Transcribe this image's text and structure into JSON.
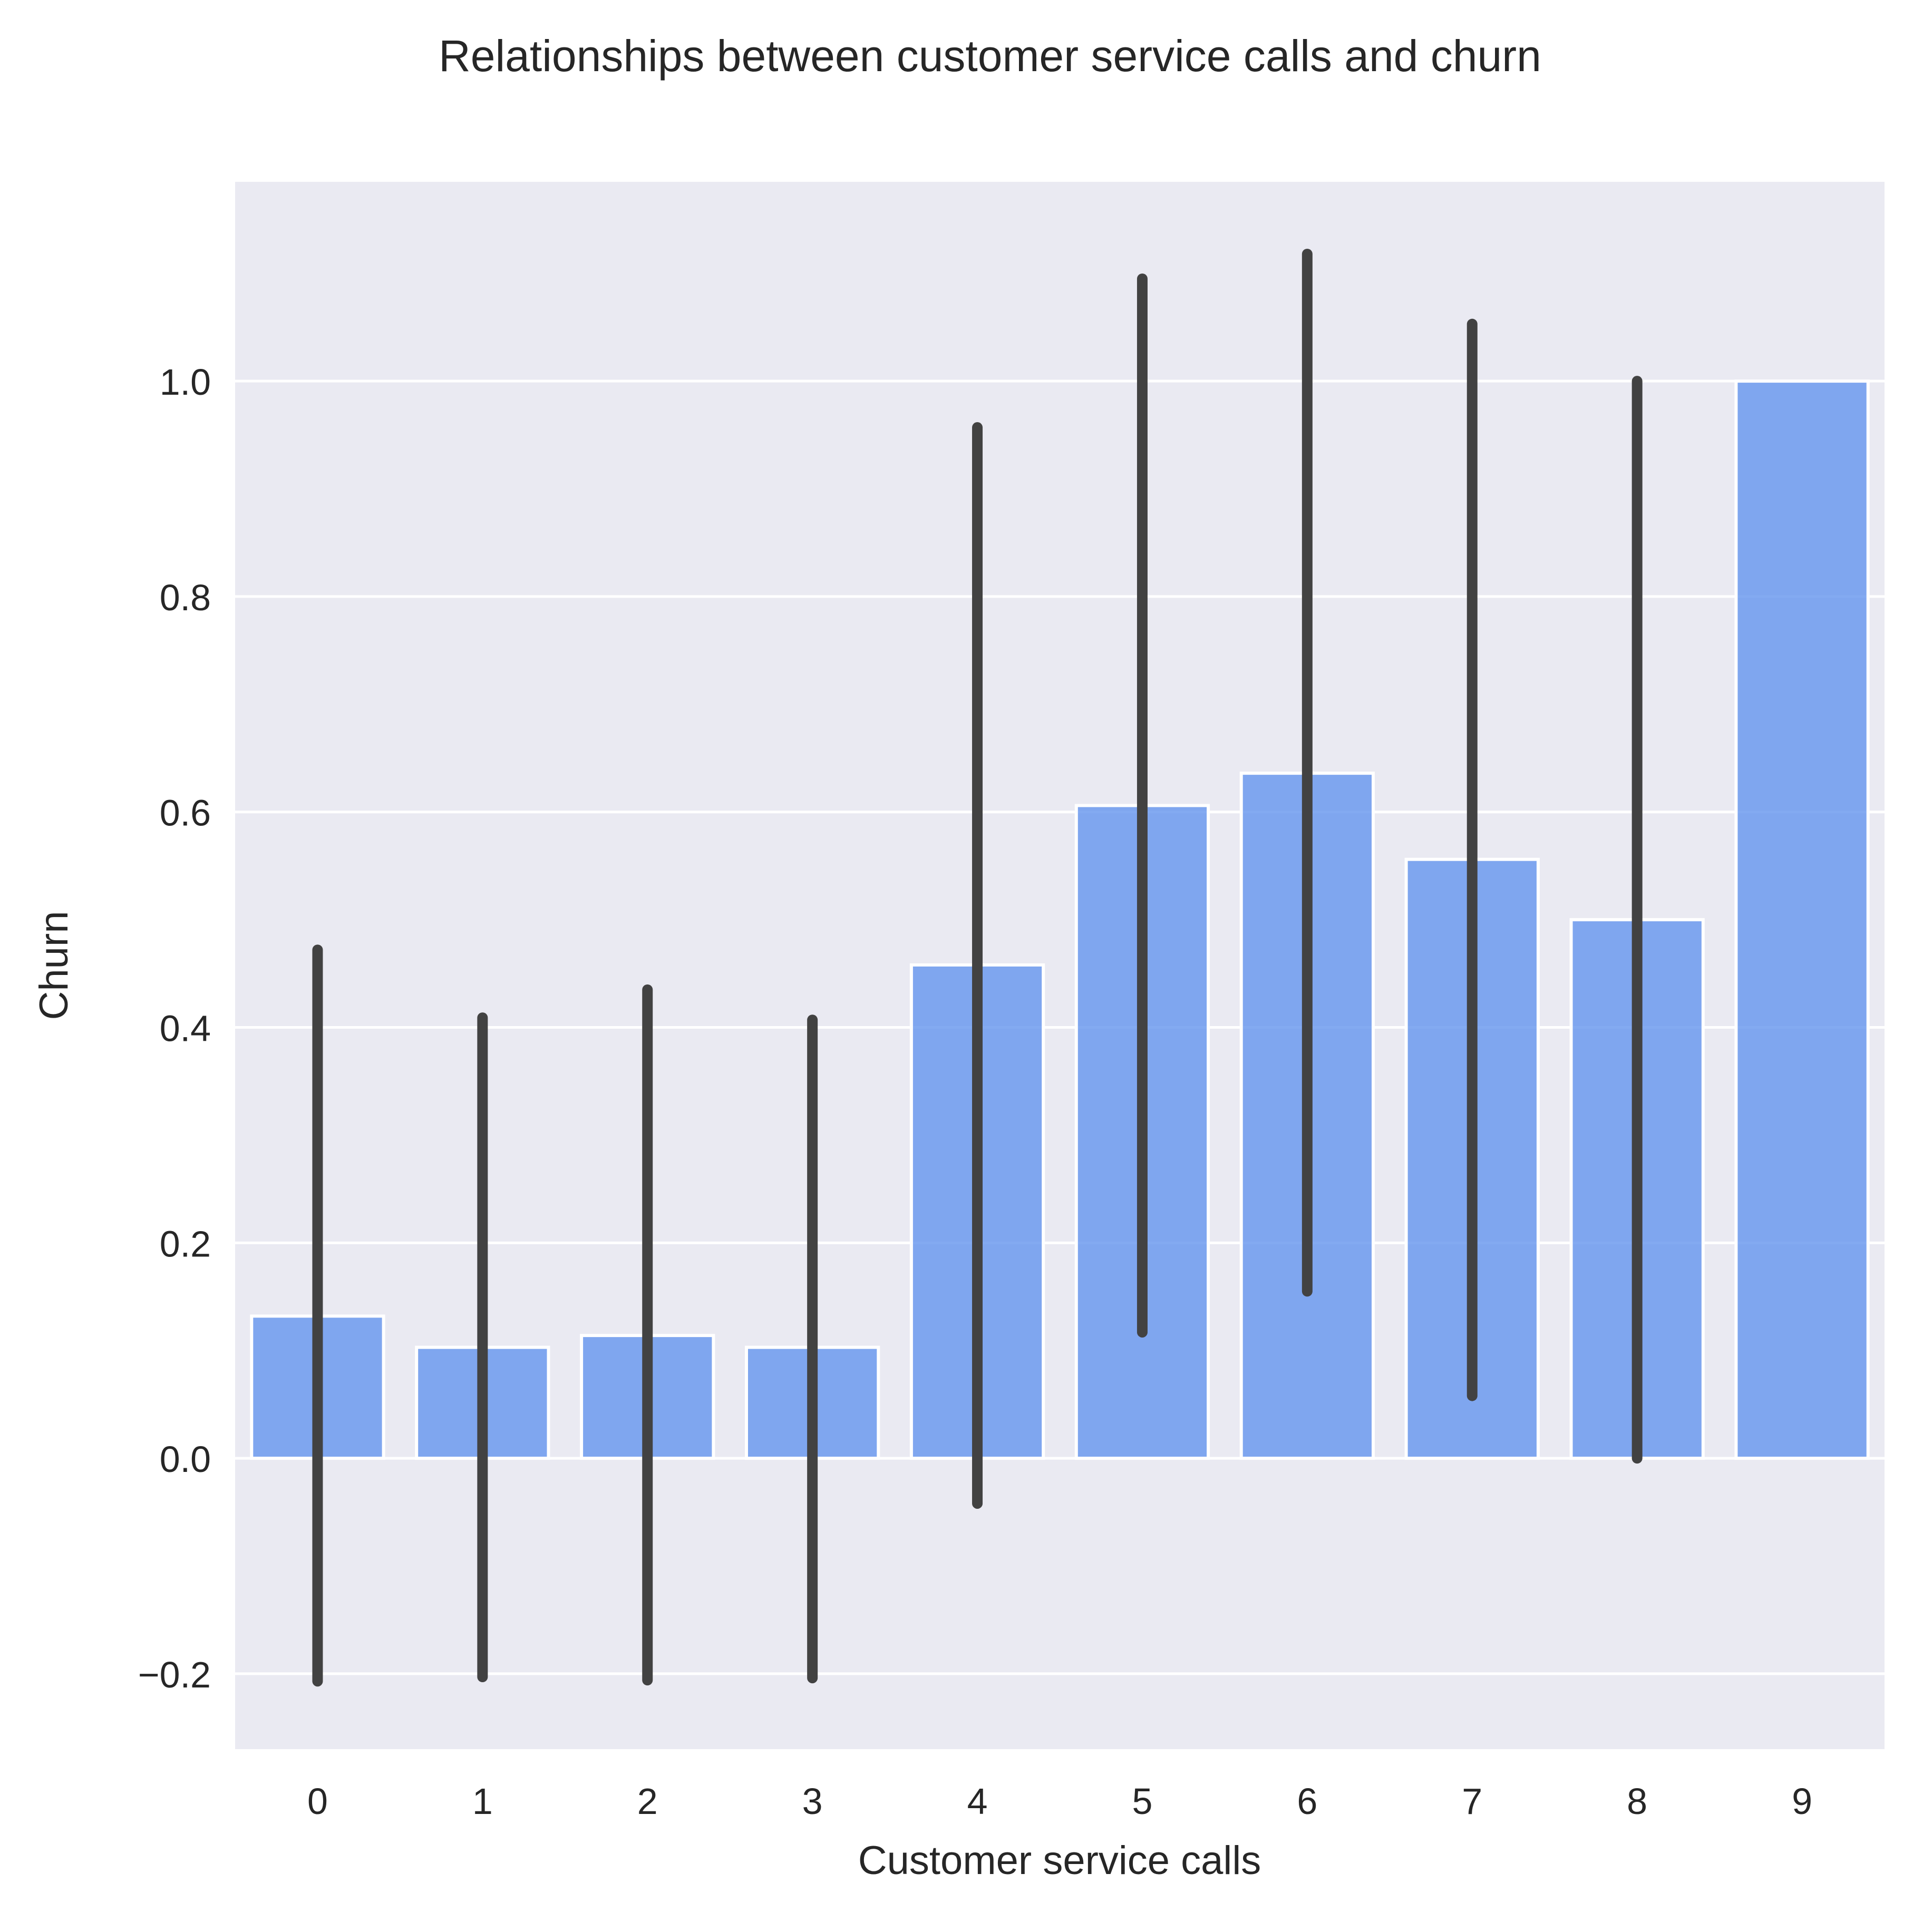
{
  "chart_data": {
    "type": "bar",
    "title": "Relationships between customer service calls and churn",
    "xlabel": "Customer service calls",
    "ylabel": "Churn",
    "categories": [
      "0",
      "1",
      "2",
      "3",
      "4",
      "5",
      "6",
      "7",
      "8",
      "9"
    ],
    "values": [
      0.132,
      0.103,
      0.114,
      0.103,
      0.458,
      0.606,
      0.636,
      0.556,
      0.5,
      1.0
    ],
    "error_bars": [
      [
        -0.207,
        0.472
      ],
      [
        -0.203,
        0.409
      ],
      [
        -0.206,
        0.435
      ],
      [
        -0.204,
        0.407
      ],
      [
        -0.042,
        0.957
      ],
      [
        0.117,
        1.095
      ],
      [
        0.155,
        1.118
      ],
      [
        0.058,
        1.053
      ],
      [
        0.0,
        1.0
      ],
      null
    ],
    "yticks": [
      -0.2,
      0.0,
      0.2,
      0.4,
      0.6,
      0.8,
      1.0
    ],
    "ytick_labels": [
      "−0.2",
      "0.0",
      "0.2",
      "0.4",
      "0.6",
      "0.8",
      "1.0"
    ],
    "ylim": [
      -0.27,
      1.185
    ],
    "grid": true,
    "legend": "none",
    "colors": {
      "bar": "#6495ED",
      "plot_background": "#EAEAF2",
      "grid": "#FFFFFF",
      "error_bar": "#424242"
    }
  }
}
